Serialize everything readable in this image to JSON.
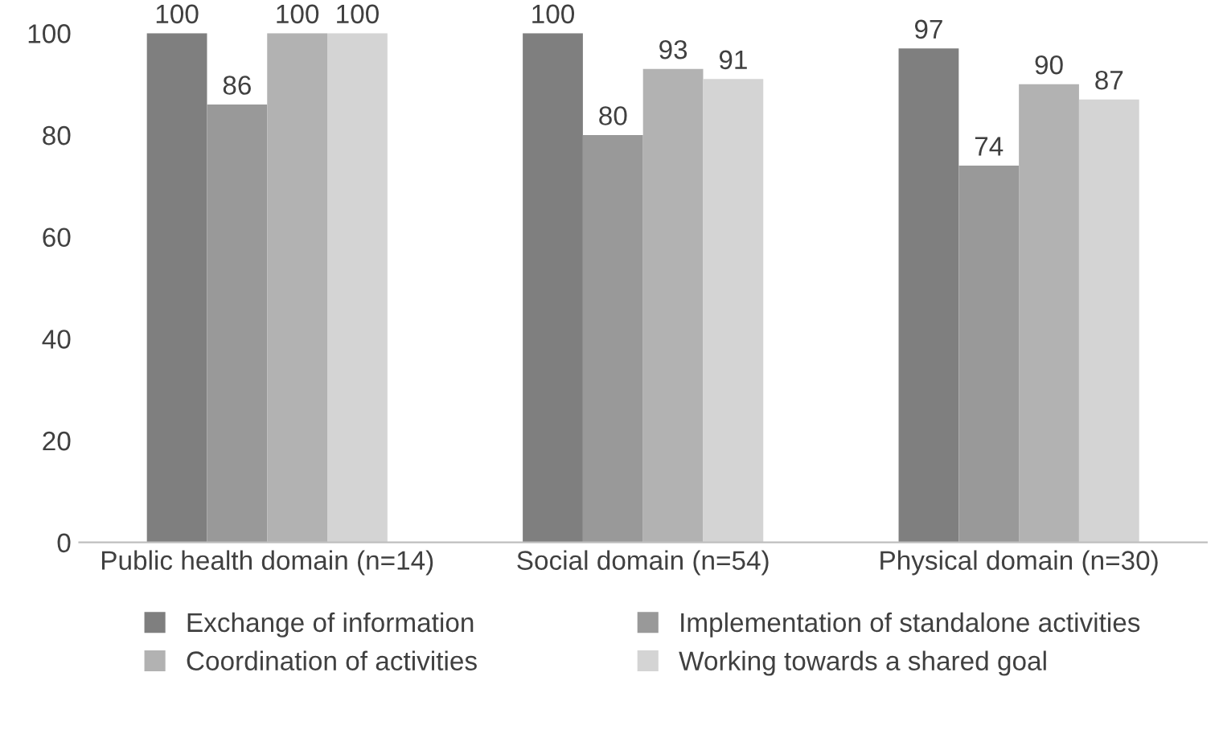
{
  "chart_data": {
    "type": "bar",
    "categories": [
      "Public health domain (n=14)",
      "Social domain (n=54)",
      "Physical domain (n=30)"
    ],
    "series": [
      {
        "name": "Exchange of information",
        "color": "#7f7f7f",
        "values": [
          100,
          100,
          97
        ]
      },
      {
        "name": "Implementation of standalone activities",
        "color": "#999999",
        "values": [
          86,
          80,
          74
        ]
      },
      {
        "name": "Coordination of activities",
        "color": "#b2b2b2",
        "values": [
          100,
          93,
          90
        ]
      },
      {
        "name": "Working towards a shared goal",
        "color": "#d4d4d4",
        "values": [
          100,
          91,
          87
        ]
      }
    ],
    "ylim": [
      0,
      100
    ],
    "yticks": [
      0,
      20,
      40,
      60,
      80,
      100
    ],
    "grid": false,
    "legend": "bottom",
    "data_labels": true
  }
}
